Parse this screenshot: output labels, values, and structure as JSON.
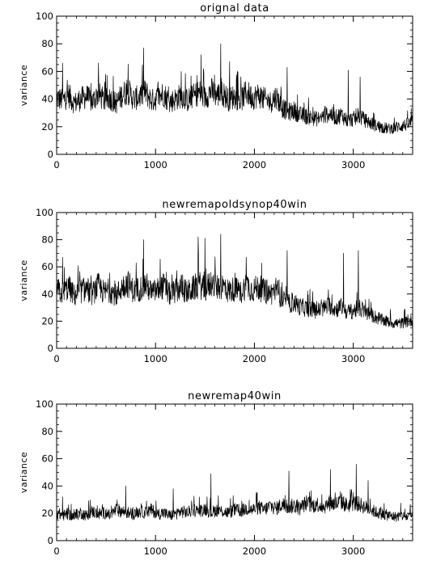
{
  "chart_data": [
    {
      "type": "line",
      "title": "orignal data",
      "xlabel": "",
      "ylabel": "variance",
      "xlim": [
        0,
        3600
      ],
      "ylim": [
        0,
        100
      ],
      "xticks": [
        0,
        1000,
        2000,
        3000
      ],
      "yticks": [
        0,
        20,
        40,
        60,
        80,
        100
      ],
      "grid": false,
      "series": [
        {
          "x": [
            0,
            60,
            120,
            180,
            240,
            300,
            360,
            420,
            480,
            540,
            600,
            660,
            720,
            780,
            840,
            900,
            960,
            1020,
            1080,
            1140,
            1200,
            1260,
            1320,
            1380,
            1440,
            1500,
            1560,
            1620,
            1680,
            1740,
            1800,
            1860,
            1920,
            1980,
            2040,
            2100,
            2160,
            2220,
            2280,
            2340,
            2400,
            2460,
            2520,
            2580,
            2640,
            2700,
            2760,
            2820,
            2880,
            2940,
            3000,
            3060,
            3120,
            3180,
            3240,
            3300,
            3360,
            3420,
            3480,
            3540,
            3600
          ],
          "y": [
            40,
            38,
            42,
            36,
            39,
            41,
            37,
            43,
            38,
            40,
            36,
            42,
            45,
            39,
            41,
            44,
            38,
            40,
            43,
            37,
            39,
            42,
            38,
            41,
            44,
            40,
            45,
            42,
            43,
            39,
            41,
            38,
            44,
            40,
            42,
            39,
            37,
            41,
            33,
            30,
            31,
            28,
            27,
            26,
            25,
            27,
            29,
            26,
            28,
            24,
            25,
            27,
            24,
            22,
            20,
            19,
            18,
            19,
            20,
            21,
            23
          ],
          "peaks": [
            {
              "x": 60,
              "y": 66
            },
            {
              "x": 880,
              "y": 77
            },
            {
              "x": 1460,
              "y": 72
            },
            {
              "x": 1660,
              "y": 80
            },
            {
              "x": 1750,
              "y": 67
            },
            {
              "x": 2330,
              "y": 63
            },
            {
              "x": 2950,
              "y": 61
            },
            {
              "x": 3070,
              "y": 56
            }
          ]
        }
      ]
    },
    {
      "type": "line",
      "title": "newremapoldsynop40win",
      "xlabel": "",
      "ylabel": "variance",
      "xlim": [
        0,
        3600
      ],
      "ylim": [
        0,
        100
      ],
      "xticks": [
        0,
        1000,
        2000,
        3000
      ],
      "yticks": [
        0,
        20,
        40,
        60,
        80,
        100
      ],
      "grid": false,
      "series": [
        {
          "x": [
            0,
            60,
            120,
            180,
            240,
            300,
            360,
            420,
            480,
            540,
            600,
            660,
            720,
            780,
            840,
            900,
            960,
            1020,
            1080,
            1140,
            1200,
            1260,
            1320,
            1380,
            1440,
            1500,
            1560,
            1620,
            1680,
            1740,
            1800,
            1860,
            1920,
            1980,
            2040,
            2100,
            2160,
            2220,
            2280,
            2340,
            2400,
            2460,
            2520,
            2580,
            2640,
            2700,
            2760,
            2820,
            2880,
            2940,
            3000,
            3060,
            3120,
            3180,
            3240,
            3300,
            3360,
            3420,
            3480,
            3540,
            3600
          ],
          "y": [
            42,
            40,
            44,
            38,
            41,
            43,
            39,
            45,
            40,
            42,
            38,
            44,
            47,
            41,
            43,
            46,
            40,
            42,
            45,
            39,
            41,
            44,
            40,
            43,
            46,
            42,
            47,
            44,
            45,
            41,
            43,
            40,
            46,
            42,
            44,
            41,
            39,
            43,
            35,
            32,
            33,
            30,
            29,
            28,
            27,
            29,
            31,
            28,
            30,
            26,
            27,
            29,
            26,
            24,
            22,
            20,
            19,
            18,
            18,
            19,
            20
          ],
          "peaks": [
            {
              "x": 60,
              "y": 67
            },
            {
              "x": 880,
              "y": 80
            },
            {
              "x": 1430,
              "y": 82
            },
            {
              "x": 1500,
              "y": 81
            },
            {
              "x": 1660,
              "y": 84
            },
            {
              "x": 2330,
              "y": 72
            },
            {
              "x": 2900,
              "y": 70
            },
            {
              "x": 3050,
              "y": 72
            }
          ]
        }
      ]
    },
    {
      "type": "line",
      "title": "newremap40win",
      "xlabel": "",
      "ylabel": "variance",
      "xlim": [
        0,
        3600
      ],
      "ylim": [
        0,
        100
      ],
      "xticks": [
        0,
        1000,
        2000,
        3000
      ],
      "yticks": [
        0,
        20,
        40,
        60,
        80,
        100
      ],
      "grid": false,
      "series": [
        {
          "x": [
            0,
            60,
            120,
            180,
            240,
            300,
            360,
            420,
            480,
            540,
            600,
            660,
            720,
            780,
            840,
            900,
            960,
            1020,
            1080,
            1140,
            1200,
            1260,
            1320,
            1380,
            1440,
            1500,
            1560,
            1620,
            1680,
            1740,
            1800,
            1860,
            1920,
            1980,
            2040,
            2100,
            2160,
            2220,
            2280,
            2340,
            2400,
            2460,
            2520,
            2580,
            2640,
            2700,
            2760,
            2820,
            2880,
            2940,
            3000,
            3060,
            3120,
            3180,
            3240,
            3300,
            3360,
            3420,
            3480,
            3540,
            3600
          ],
          "y": [
            20,
            18,
            19,
            17,
            20,
            18,
            21,
            19,
            20,
            18,
            22,
            21,
            20,
            19,
            21,
            20,
            22,
            19,
            20,
            18,
            19,
            21,
            20,
            22,
            21,
            23,
            20,
            22,
            21,
            20,
            22,
            21,
            23,
            22,
            24,
            22,
            25,
            23,
            26,
            24,
            25,
            23,
            27,
            25,
            26,
            24,
            27,
            26,
            28,
            25,
            27,
            26,
            24,
            22,
            20,
            19,
            18,
            17,
            18,
            17,
            18
          ],
          "peaks": [
            {
              "x": 60,
              "y": 32
            },
            {
              "x": 700,
              "y": 40
            },
            {
              "x": 1180,
              "y": 38
            },
            {
              "x": 1560,
              "y": 49
            },
            {
              "x": 2350,
              "y": 51
            },
            {
              "x": 2770,
              "y": 52
            },
            {
              "x": 3030,
              "y": 56
            },
            {
              "x": 3150,
              "y": 44
            }
          ]
        }
      ]
    }
  ]
}
